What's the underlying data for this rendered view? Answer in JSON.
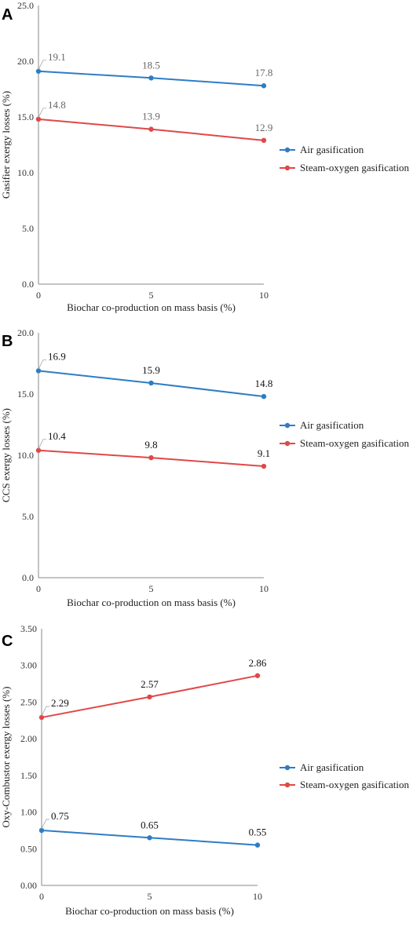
{
  "colors": {
    "air": "#2e7dc4",
    "steam": "#e04848",
    "axis": "#888888",
    "leader": "#a6a6a6"
  },
  "chart_data": [
    {
      "type": "line",
      "panel": "A",
      "categories": [
        "0",
        "5",
        "10"
      ],
      "x": [
        0,
        5,
        10
      ],
      "ylabel": "Gasifier exergy losses (%)",
      "xlabel": "Biochar co-production on mass basis (%)",
      "ylim": [
        0,
        25
      ],
      "yticks": [
        "0.0",
        "5.0",
        "10.0",
        "15.0",
        "20.0",
        "25.0"
      ],
      "ytick_values": [
        0,
        5,
        10,
        15,
        20,
        25
      ],
      "legend_position": "right",
      "label_color": "#666666",
      "series": [
        {
          "name": "Air gasification",
          "values": [
            19.1,
            18.5,
            17.8
          ],
          "labels": [
            "19.1",
            "18.5",
            "17.8"
          ]
        },
        {
          "name": "Steam-oxygen gasification",
          "values": [
            14.8,
            13.9,
            12.9
          ],
          "labels": [
            "14.8",
            "13.9",
            "12.9"
          ]
        }
      ]
    },
    {
      "type": "line",
      "panel": "B",
      "categories": [
        "0",
        "5",
        "10"
      ],
      "x": [
        0,
        5,
        10
      ],
      "ylabel": "CCS exergy losses (%)",
      "xlabel": "Biochar co-production on mass basis (%)",
      "ylim": [
        0,
        20
      ],
      "yticks": [
        "0.0",
        "5.0",
        "10.0",
        "15.0",
        "20.0"
      ],
      "ytick_values": [
        0,
        5,
        10,
        15,
        20
      ],
      "legend_position": "right",
      "label_color": "#111111",
      "series": [
        {
          "name": "Air gasification",
          "values": [
            16.9,
            15.9,
            14.8
          ],
          "labels": [
            "16.9",
            "15.9",
            "14.8"
          ]
        },
        {
          "name": "Steam-oxygen gasification",
          "values": [
            10.4,
            9.8,
            9.1
          ],
          "labels": [
            "10.4",
            "9.8",
            "9.1"
          ]
        }
      ]
    },
    {
      "type": "line",
      "panel": "C",
      "categories": [
        "0",
        "5",
        "10"
      ],
      "x": [
        0,
        5,
        10
      ],
      "ylabel": "Oxy-Combustor exergy losses (%)",
      "xlabel": "Biochar co-production on mass basis (%)",
      "ylim": [
        0,
        3.5
      ],
      "yticks": [
        "0.00",
        "0.50",
        "1.00",
        "1.50",
        "2.00",
        "2.50",
        "3.00",
        "3.50"
      ],
      "ytick_values": [
        0,
        0.5,
        1.0,
        1.5,
        2.0,
        2.5,
        3.0,
        3.5
      ],
      "legend_position": "right",
      "label_color": "#111111",
      "series": [
        {
          "name": "Air gasification",
          "values": [
            0.75,
            0.65,
            0.55
          ],
          "labels": [
            "0.75",
            "0.65",
            "0.55"
          ]
        },
        {
          "name": "Steam-oxygen gasification",
          "values": [
            2.29,
            2.57,
            2.86
          ],
          "labels": [
            "2.29",
            "2.57",
            "2.86"
          ]
        }
      ]
    }
  ]
}
